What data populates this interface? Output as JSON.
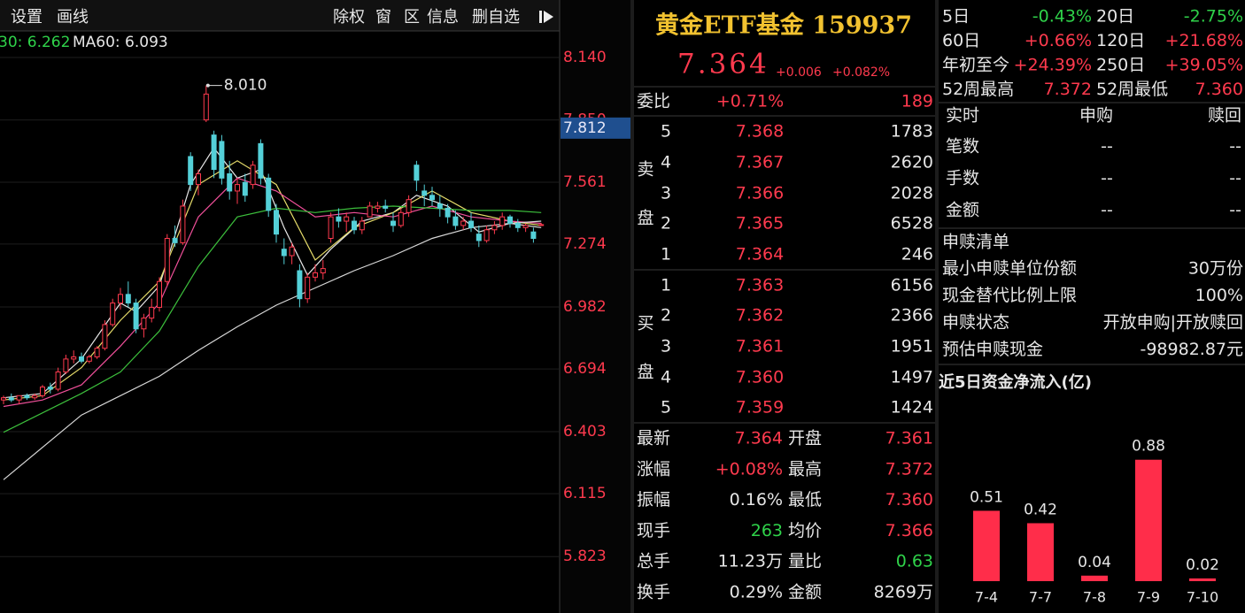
{
  "toolbar": {
    "left": [
      "设置",
      "画线"
    ],
    "right": [
      "除权",
      "窗",
      "区",
      "信息",
      "删自选"
    ]
  },
  "chart_data": [
    {
      "type": "candlestick",
      "legend": [
        "30: 6.262",
        "MA60: 6.093"
      ],
      "candles": [
        [
          6.55,
          6.57,
          6.53,
          6.56
        ],
        [
          6.56,
          6.58,
          6.54,
          6.55
        ],
        [
          6.55,
          6.57,
          6.53,
          6.57
        ],
        [
          6.57,
          6.58,
          6.55,
          6.56
        ],
        [
          6.56,
          6.58,
          6.55,
          6.57
        ],
        [
          6.57,
          6.62,
          6.56,
          6.61
        ],
        [
          6.61,
          6.63,
          6.58,
          6.6
        ],
        [
          6.6,
          6.7,
          6.59,
          6.68
        ],
        [
          6.68,
          6.76,
          6.67,
          6.74
        ],
        [
          6.74,
          6.78,
          6.72,
          6.75
        ],
        [
          6.75,
          6.77,
          6.72,
          6.73
        ],
        [
          6.73,
          6.76,
          6.72,
          6.75
        ],
        [
          6.75,
          6.8,
          6.74,
          6.79
        ],
        [
          6.79,
          6.92,
          6.78,
          6.9
        ],
        [
          6.9,
          7.02,
          6.89,
          7
        ],
        [
          7,
          7.07,
          6.97,
          7.04
        ],
        [
          7.04,
          7.1,
          6.98,
          7
        ],
        [
          7,
          7.02,
          6.86,
          6.88
        ],
        [
          6.88,
          6.95,
          6.84,
          6.93
        ],
        [
          6.93,
          7.02,
          6.91,
          6.98
        ],
        [
          6.98,
          7.12,
          6.96,
          7.1
        ],
        [
          7.1,
          7.32,
          7.08,
          7.3
        ],
        [
          7.3,
          7.36,
          7.26,
          7.28
        ],
        [
          7.28,
          7.48,
          7.27,
          7.45
        ],
        [
          7.68,
          7.7,
          7.52,
          7.55
        ],
        [
          7.55,
          7.62,
          7.5,
          7.6
        ],
        [
          7.85,
          8.01,
          7.84,
          7.97
        ],
        [
          7.78,
          7.8,
          7.58,
          7.62
        ],
        [
          7.75,
          7.78,
          7.55,
          7.58
        ],
        [
          7.6,
          7.66,
          7.48,
          7.52
        ],
        [
          7.52,
          7.58,
          7.46,
          7.55
        ],
        [
          7.56,
          7.6,
          7.47,
          7.5
        ],
        [
          7.55,
          7.66,
          7.53,
          7.64
        ],
        [
          7.74,
          7.76,
          7.55,
          7.58
        ],
        [
          7.58,
          7.6,
          7.4,
          7.43
        ],
        [
          7.43,
          7.46,
          7.28,
          7.32
        ],
        [
          7.25,
          7.3,
          7.18,
          7.22
        ],
        [
          7.22,
          7.28,
          7.18,
          7.26
        ],
        [
          7.15,
          7.18,
          6.98,
          7.02
        ],
        [
          7.02,
          7.14,
          7,
          7.12
        ],
        [
          7.12,
          7.18,
          7.1,
          7.14
        ],
        [
          7.14,
          7.2,
          7.11,
          7.16
        ],
        [
          7.3,
          7.42,
          7.28,
          7.4
        ],
        [
          7.4,
          7.44,
          7.35,
          7.38
        ],
        [
          7.38,
          7.42,
          7.33,
          7.4
        ],
        [
          7.38,
          7.4,
          7.32,
          7.34
        ],
        [
          7.34,
          7.4,
          7.32,
          7.38
        ],
        [
          7.4,
          7.47,
          7.4,
          7.45
        ],
        [
          7.44,
          7.47,
          7.42,
          7.45
        ],
        [
          7.45,
          7.48,
          7.42,
          7.44
        ],
        [
          7.38,
          7.42,
          7.33,
          7.36
        ],
        [
          7.36,
          7.44,
          7.35,
          7.42
        ],
        [
          7.42,
          7.5,
          7.4,
          7.48
        ],
        [
          7.64,
          7.66,
          7.52,
          7.57
        ],
        [
          7.52,
          7.55,
          7.45,
          7.5
        ],
        [
          7.5,
          7.54,
          7.45,
          7.48
        ],
        [
          7.46,
          7.5,
          7.4,
          7.44
        ],
        [
          7.44,
          7.46,
          7.37,
          7.4
        ],
        [
          7.4,
          7.43,
          7.34,
          7.36
        ],
        [
          7.36,
          7.4,
          7.34,
          7.38
        ],
        [
          7.38,
          7.42,
          7.33,
          7.35
        ],
        [
          7.32,
          7.36,
          7.26,
          7.29
        ],
        [
          7.29,
          7.36,
          7.28,
          7.34
        ],
        [
          7.34,
          7.38,
          7.32,
          7.36
        ],
        [
          7.36,
          7.42,
          7.34,
          7.4
        ],
        [
          7.4,
          7.41,
          7.35,
          7.37
        ],
        [
          7.37,
          7.39,
          7.33,
          7.35
        ],
        [
          7.35,
          7.37,
          7.33,
          7.36
        ],
        [
          7.33,
          7.35,
          7.28,
          7.3
        ],
        [
          7.361,
          7.372,
          7.36,
          7.364
        ]
      ],
      "series": [
        {
          "color": "#e8e8e8",
          "x": [
            0,
            5,
            10,
            15,
            17,
            20,
            24,
            27,
            30,
            33,
            36,
            39,
            42,
            46,
            50,
            53,
            57,
            61,
            65,
            69
          ],
          "values": [
            6.56,
            6.58,
            6.74,
            7,
            6.96,
            7.08,
            7.55,
            7.72,
            7.58,
            7.62,
            7.35,
            7.13,
            7.25,
            7.38,
            7.42,
            7.5,
            7.45,
            7.33,
            7.37,
            7.35
          ]
        },
        {
          "color": "#e6dc6a",
          "x": [
            0,
            5,
            10,
            15,
            20,
            25,
            30,
            35,
            40,
            45,
            50,
            55,
            60,
            65,
            69
          ],
          "values": [
            6.55,
            6.57,
            6.7,
            6.92,
            7.1,
            7.55,
            7.66,
            7.55,
            7.2,
            7.35,
            7.42,
            7.52,
            7.42,
            7.38,
            7.36
          ]
        },
        {
          "color": "#f0509a",
          "x": [
            0,
            5,
            10,
            15,
            20,
            25,
            30,
            35,
            40,
            45,
            50,
            55,
            60,
            65,
            69
          ],
          "values": [
            6.52,
            6.55,
            6.62,
            6.8,
            7,
            7.4,
            7.58,
            7.52,
            7.4,
            7.42,
            7.4,
            7.45,
            7.4,
            7.38,
            7.37
          ]
        },
        {
          "color": "#3cbf3c",
          "x": [
            0,
            10,
            15,
            20,
            25,
            30,
            35,
            40,
            45,
            50,
            55,
            60,
            65,
            69
          ],
          "values": [
            6.4,
            6.58,
            6.68,
            6.87,
            7.17,
            7.4,
            7.44,
            7.42,
            7.44,
            7.45,
            7.44,
            7.43,
            7.43,
            7.42
          ]
        },
        {
          "color": "#d8d8d8",
          "x": [
            0,
            10,
            20,
            25,
            30,
            35,
            40,
            45,
            50,
            55,
            60,
            65,
            69
          ],
          "values": [
            6.18,
            6.48,
            6.66,
            6.78,
            6.89,
            6.99,
            7.07,
            7.15,
            7.22,
            7.3,
            7.35,
            7.37,
            7.38
          ]
        }
      ],
      "ylim": [
        5.561,
        8.263
      ],
      "yticks": [
        {
          "value": 8.14,
          "label": "8.140"
        },
        {
          "value": 7.85,
          "label": "7.850"
        },
        7.561,
        7.274,
        6.982,
        6.694,
        6.403,
        6.115,
        5.823
      ],
      "grid": true,
      "max_label": "8.010",
      "cursor_value": 7.812,
      "up_color": "#ff3a4e",
      "down_color": "#54d0d8"
    },
    {
      "type": "bar",
      "title": "近5日资金净流入(亿)",
      "categories": [
        "7-4",
        "7-7",
        "7-8",
        "7-9",
        "7-10"
      ],
      "values": [
        0.51,
        0.42,
        0.04,
        0.88,
        0.02
      ],
      "color": "#ff2d4a"
    }
  ],
  "quote": {
    "name": "黄金ETF基金 159937",
    "price": "7.364",
    "change": "+0.006",
    "change_pct": "+0.082%",
    "ratio": [
      "委比",
      "+0.71%",
      "189"
    ],
    "sell_label": [
      "卖",
      "盘"
    ],
    "buy_label": [
      "买",
      "盘"
    ],
    "asks": [
      [
        "5",
        "7.368",
        "1783"
      ],
      [
        "4",
        "7.367",
        "2620"
      ],
      [
        "3",
        "7.366",
        "2028"
      ],
      [
        "2",
        "7.365",
        "6528"
      ],
      [
        "1",
        "7.364",
        "246"
      ]
    ],
    "bids": [
      [
        "1",
        "7.363",
        "6156"
      ],
      [
        "2",
        "7.362",
        "2366"
      ],
      [
        "3",
        "7.361",
        "1951"
      ],
      [
        "4",
        "7.360",
        "1497"
      ],
      [
        "5",
        "7.359",
        "1424"
      ]
    ],
    "stats": [
      [
        "最新",
        "7.364",
        "开盘",
        "7.361"
      ],
      [
        "涨幅",
        "+0.08%",
        "最高",
        "7.372"
      ],
      [
        "振幅",
        "0.16%",
        "最低",
        "7.360"
      ],
      [
        "现手",
        "263",
        "均价",
        "7.366"
      ],
      [
        "总手",
        "11.23万",
        "量比",
        "0.63"
      ],
      [
        "换手",
        "0.29%",
        "金额",
        "8269万"
      ]
    ]
  },
  "returns": [
    [
      "5日",
      "-0.43%",
      "20日",
      "-2.75%"
    ],
    [
      "60日",
      "+0.66%",
      "120日",
      "+21.68%"
    ],
    [
      "年初至今",
      "+24.39%",
      "250日",
      "+39.05%"
    ],
    [
      "52周最高",
      "7.372",
      "52周最低",
      "7.360"
    ]
  ],
  "realtime": {
    "header": [
      "实时",
      "申购",
      "赎回"
    ],
    "rows": [
      [
        "笔数",
        "--",
        "--"
      ],
      [
        "手数",
        "--",
        "--"
      ],
      [
        "金额",
        "--",
        "--"
      ]
    ]
  },
  "redemption": {
    "title": "申赎清单",
    "rows": [
      [
        "最小申赎单位份额",
        "30万份"
      ],
      [
        "现金替代比例上限",
        "100%"
      ],
      [
        "申赎状态",
        "开放申购|开放赎回"
      ],
      [
        "预估申赎现金",
        "-98982.87元"
      ]
    ]
  }
}
